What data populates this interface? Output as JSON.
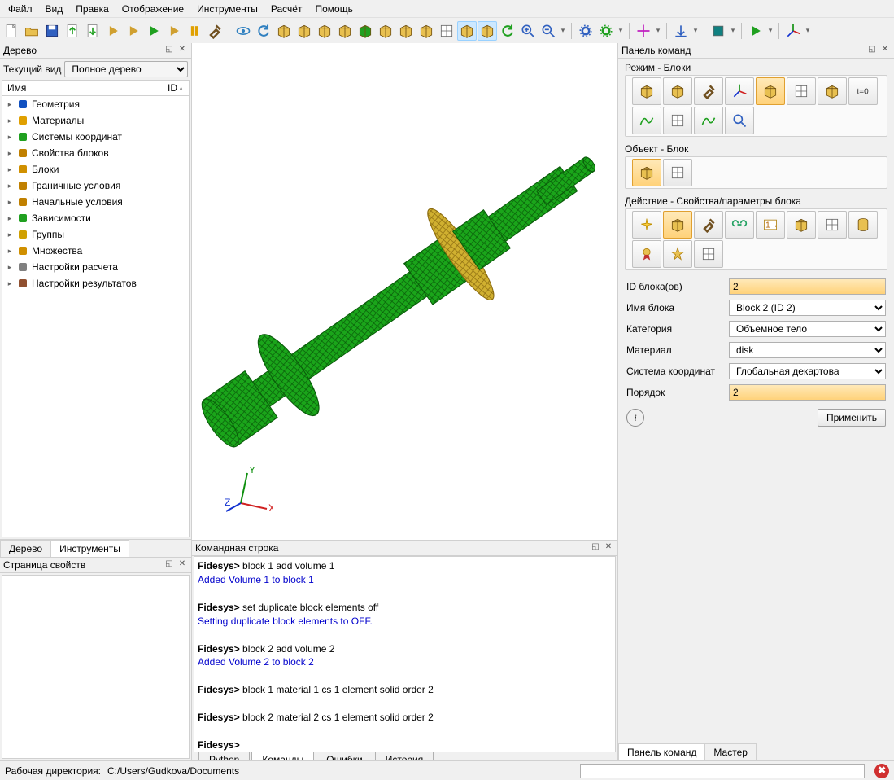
{
  "menu": [
    "Файл",
    "Вид",
    "Правка",
    "Отображение",
    "Инструменты",
    "Расчёт",
    "Помощь"
  ],
  "tree_panel": {
    "title": "Дерево",
    "view_label": "Текущий вид",
    "view_value": "Полное дерево",
    "col_name": "Имя",
    "col_id": "ID",
    "items": [
      {
        "label": "Геометрия",
        "color": "#1050c0"
      },
      {
        "label": "Материалы",
        "color": "#e0a000"
      },
      {
        "label": "Системы координат",
        "color": "#20a020"
      },
      {
        "label": "Свойства блоков",
        "color": "#c08000"
      },
      {
        "label": "Блоки",
        "color": "#d09000"
      },
      {
        "label": "Граничные условия",
        "color": "#c08000"
      },
      {
        "label": "Начальные условия",
        "color": "#c08000"
      },
      {
        "label": "Зависимости",
        "color": "#20a020"
      },
      {
        "label": "Группы",
        "color": "#d0a000"
      },
      {
        "label": "Множества",
        "color": "#d09000"
      },
      {
        "label": "Настройки расчета",
        "color": "#808080"
      },
      {
        "label": "Настройки результатов",
        "color": "#905030"
      }
    ],
    "tabs": [
      "Дерево",
      "Инструменты"
    ]
  },
  "props_panel": {
    "title": "Страница свойств"
  },
  "cmd_panel": {
    "title": "Командная строка",
    "lines": [
      {
        "t": "prompt",
        "s": "Fidesys> "
      },
      {
        "t": "cmd",
        "s": "block 1 add volume 1\n"
      },
      {
        "t": "ok",
        "s": "Added Volume 1 to block 1\n\n"
      },
      {
        "t": "prompt",
        "s": "Fidesys> "
      },
      {
        "t": "cmd",
        "s": "set duplicate block elements off\n"
      },
      {
        "t": "ok",
        "s": "Setting duplicate block elements to OFF.\n\n"
      },
      {
        "t": "prompt",
        "s": "Fidesys> "
      },
      {
        "t": "cmd",
        "s": "block 2 add volume 2\n"
      },
      {
        "t": "ok",
        "s": "Added Volume 2 to block 2\n\n"
      },
      {
        "t": "prompt",
        "s": "Fidesys> "
      },
      {
        "t": "cmd",
        "s": "block 1 material 1 cs 1 element solid order 2\n\n"
      },
      {
        "t": "prompt",
        "s": "Fidesys> "
      },
      {
        "t": "cmd",
        "s": "block 2 material 2 cs 1 element solid order 2\n\n"
      },
      {
        "t": "prompt",
        "s": "Fidesys> "
      }
    ],
    "tabs": [
      "Python",
      "Команды",
      "Ошибки",
      "История"
    ],
    "active_tab": 1
  },
  "right_panel": {
    "title": "Панель команд",
    "section1": "Режим - Блоки",
    "section2": "Объект - Блок",
    "section3": "Действие - Свойства/параметры блока",
    "form": {
      "id_label": "ID блока(ов)",
      "id_value": "2",
      "name_label": "Имя блока",
      "name_value": "Block 2 (ID 2)",
      "cat_label": "Категория",
      "cat_value": "Объемное тело",
      "mat_label": "Материал",
      "mat_value": "disk",
      "cs_label": "Система координат",
      "cs_value": "Глобальная декартова",
      "order_label": "Порядок",
      "order_value": "2",
      "apply": "Применить"
    },
    "tabs": [
      "Панель команд",
      "Мастер"
    ]
  },
  "status": {
    "workdir_label": "Рабочая директория:",
    "workdir": "C:/Users/Gudkova/Documents"
  },
  "colors": {
    "mesh": "#1aa51a",
    "mesh_edge": "#0a5a0a",
    "disk": "#d0b030",
    "accent": "#ffd27a",
    "bg": "#f0f0f0"
  },
  "toolbar_icons": {
    "row": [
      "new",
      "open",
      "save",
      "export",
      "import",
      "journal",
      "script",
      "play",
      "play-id",
      "pause",
      "hammer",
      "sep",
      "eye",
      "undo",
      "cube-wire",
      "cube-shade",
      "cube-solid",
      "cube-hl",
      "cube-green",
      "cube-pair",
      "cube-multi",
      "cube-person",
      "grid",
      "cube-fill",
      "cube-lines",
      "refresh",
      "zoom-in",
      "zoom-out",
      "drop",
      "sep",
      "gear-blue",
      "gear-green",
      "drop",
      "sep",
      "cross-pick",
      "drop",
      "sep",
      "anchor-down",
      "drop",
      "sep",
      "box-node",
      "drop",
      "sep",
      "play-green",
      "drop",
      "sep",
      "axis-xyz",
      "drop"
    ]
  },
  "mode_grid": [
    "shape",
    "mesh-cube",
    "wrench",
    "axes",
    "cube-sel",
    "grid4",
    "brick",
    "t0",
    "curve",
    "sheet",
    "wave",
    "zoom"
  ],
  "object_grid": [
    "block-sel",
    "sheet2"
  ],
  "action_grid": [
    "spark",
    "cube-sel2",
    "hammer2",
    "link",
    "num",
    "stack",
    "grid2",
    "cylinder",
    "medal",
    "star",
    "list"
  ]
}
